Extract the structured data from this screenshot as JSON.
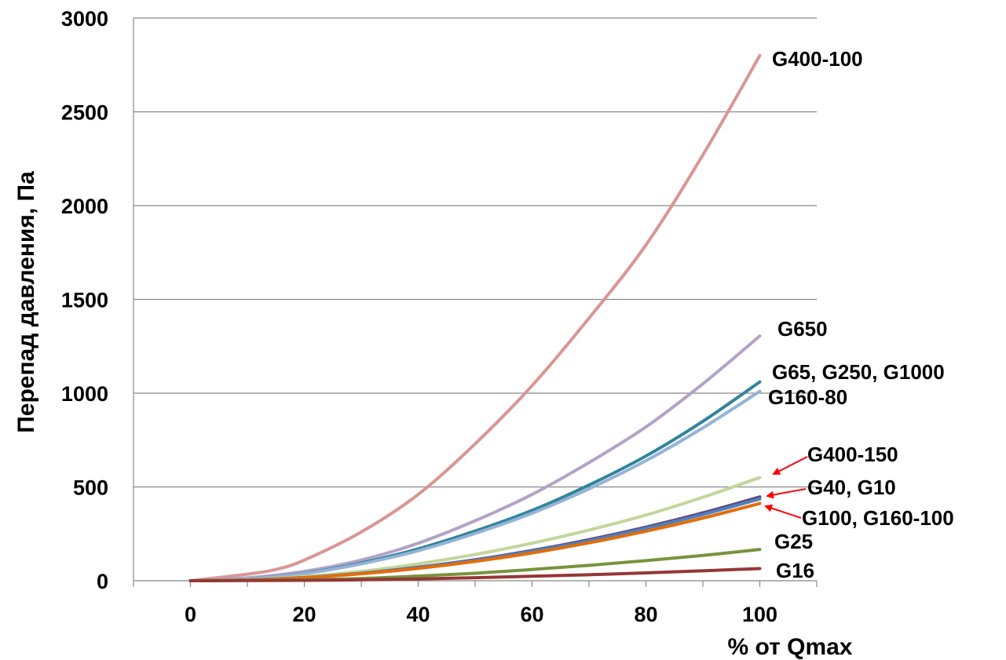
{
  "chart_data": {
    "type": "line",
    "title": "",
    "xlabel": "% от Qmax",
    "ylabel": "Перепад давления, Па",
    "xlim": [
      -10,
      110
    ],
    "ylim": [
      0,
      3000
    ],
    "x_ticks": [
      0,
      20,
      40,
      60,
      80,
      100
    ],
    "y_ticks": [
      0,
      500,
      1000,
      1500,
      2000,
      2500,
      3000
    ],
    "grid": "horizontal",
    "series": [
      {
        "color": "#d99694",
        "points": [
          [
            0,
            0
          ],
          [
            10,
            35
          ],
          [
            15,
            60
          ],
          [
            20,
            110
          ],
          [
            30,
            260
          ],
          [
            40,
            460
          ],
          [
            50,
            730
          ],
          [
            60,
            1040
          ],
          [
            70,
            1400
          ],
          [
            80,
            1790
          ],
          [
            90,
            2270
          ],
          [
            100,
            2800
          ]
        ]
      },
      {
        "color": "#b3a2c7",
        "points": [
          [
            0,
            0
          ],
          [
            10,
            15
          ],
          [
            20,
            50
          ],
          [
            30,
            110
          ],
          [
            40,
            200
          ],
          [
            50,
            320
          ],
          [
            60,
            460
          ],
          [
            70,
            630
          ],
          [
            80,
            820
          ],
          [
            90,
            1050
          ],
          [
            100,
            1305
          ]
        ]
      },
      {
        "color": "#31849b",
        "points": [
          [
            0,
            0
          ],
          [
            10,
            10
          ],
          [
            20,
            40
          ],
          [
            30,
            95
          ],
          [
            40,
            170
          ],
          [
            50,
            265
          ],
          [
            60,
            375
          ],
          [
            70,
            510
          ],
          [
            80,
            665
          ],
          [
            90,
            850
          ],
          [
            100,
            1060
          ]
        ]
      },
      {
        "color": "#95b3d7",
        "points": [
          [
            0,
            0
          ],
          [
            10,
            10
          ],
          [
            20,
            38
          ],
          [
            30,
            90
          ],
          [
            40,
            160
          ],
          [
            50,
            252
          ],
          [
            60,
            360
          ],
          [
            70,
            490
          ],
          [
            80,
            640
          ],
          [
            90,
            815
          ],
          [
            100,
            1010
          ]
        ]
      },
      {
        "color": "#c3d69b",
        "points": [
          [
            0,
            0
          ],
          [
            10,
            5
          ],
          [
            20,
            22
          ],
          [
            30,
            50
          ],
          [
            40,
            90
          ],
          [
            50,
            140
          ],
          [
            60,
            200
          ],
          [
            70,
            270
          ],
          [
            80,
            350
          ],
          [
            90,
            445
          ],
          [
            100,
            550
          ]
        ]
      },
      {
        "color": "#604a7b",
        "points": [
          [
            0,
            0
          ],
          [
            10,
            4
          ],
          [
            20,
            17
          ],
          [
            30,
            40
          ],
          [
            40,
            72
          ],
          [
            50,
            112
          ],
          [
            60,
            161
          ],
          [
            70,
            219
          ],
          [
            80,
            286
          ],
          [
            90,
            362
          ],
          [
            100,
            447
          ]
        ]
      },
      {
        "color": "#4f81bd",
        "points": [
          [
            0,
            0
          ],
          [
            10,
            4
          ],
          [
            20,
            17
          ],
          [
            30,
            39
          ],
          [
            40,
            70
          ],
          [
            50,
            109
          ],
          [
            60,
            157
          ],
          [
            70,
            213
          ],
          [
            80,
            279
          ],
          [
            90,
            353
          ],
          [
            100,
            436
          ]
        ]
      },
      {
        "color": "#e46c0a",
        "points": [
          [
            0,
            0
          ],
          [
            10,
            4
          ],
          [
            20,
            16
          ],
          [
            30,
            37
          ],
          [
            40,
            66
          ],
          [
            50,
            103
          ],
          [
            60,
            148
          ],
          [
            70,
            202
          ],
          [
            80,
            264
          ],
          [
            90,
            334
          ],
          [
            100,
            412
          ]
        ]
      },
      {
        "color": "#77933c",
        "points": [
          [
            0,
            0
          ],
          [
            20,
            5
          ],
          [
            30,
            12
          ],
          [
            40,
            25
          ],
          [
            50,
            40
          ],
          [
            60,
            60
          ],
          [
            70,
            82
          ],
          [
            80,
            107
          ],
          [
            90,
            135
          ],
          [
            100,
            167
          ]
        ]
      },
      {
        "color": "#953735",
        "points": [
          [
            0,
            0
          ],
          [
            20,
            2
          ],
          [
            30,
            5
          ],
          [
            40,
            10
          ],
          [
            50,
            16
          ],
          [
            60,
            24
          ],
          [
            70,
            32
          ],
          [
            80,
            42
          ],
          [
            90,
            53
          ],
          [
            100,
            65
          ]
        ]
      }
    ],
    "annotations": [
      {
        "text": "G400-100",
        "arrow": false
      },
      {
        "text": "G650",
        "arrow": false
      },
      {
        "text": "G65, G250, G1000",
        "arrow": false
      },
      {
        "text": "G160-80",
        "arrow": false
      },
      {
        "text": "G400-150",
        "arrow": true,
        "arrow_color": "#ff0000"
      },
      {
        "text": "G40, G10",
        "arrow": true,
        "arrow_color": "#ff0000"
      },
      {
        "text": "G100, G160-100",
        "arrow": true,
        "arrow_color": "#ff0000"
      },
      {
        "text": "G25",
        "arrow": false
      },
      {
        "text": "G16",
        "arrow": false
      }
    ]
  },
  "colors": {
    "grid": "#888888",
    "axis": "#888888",
    "text": "#000000",
    "arrow": "#ff0000"
  }
}
